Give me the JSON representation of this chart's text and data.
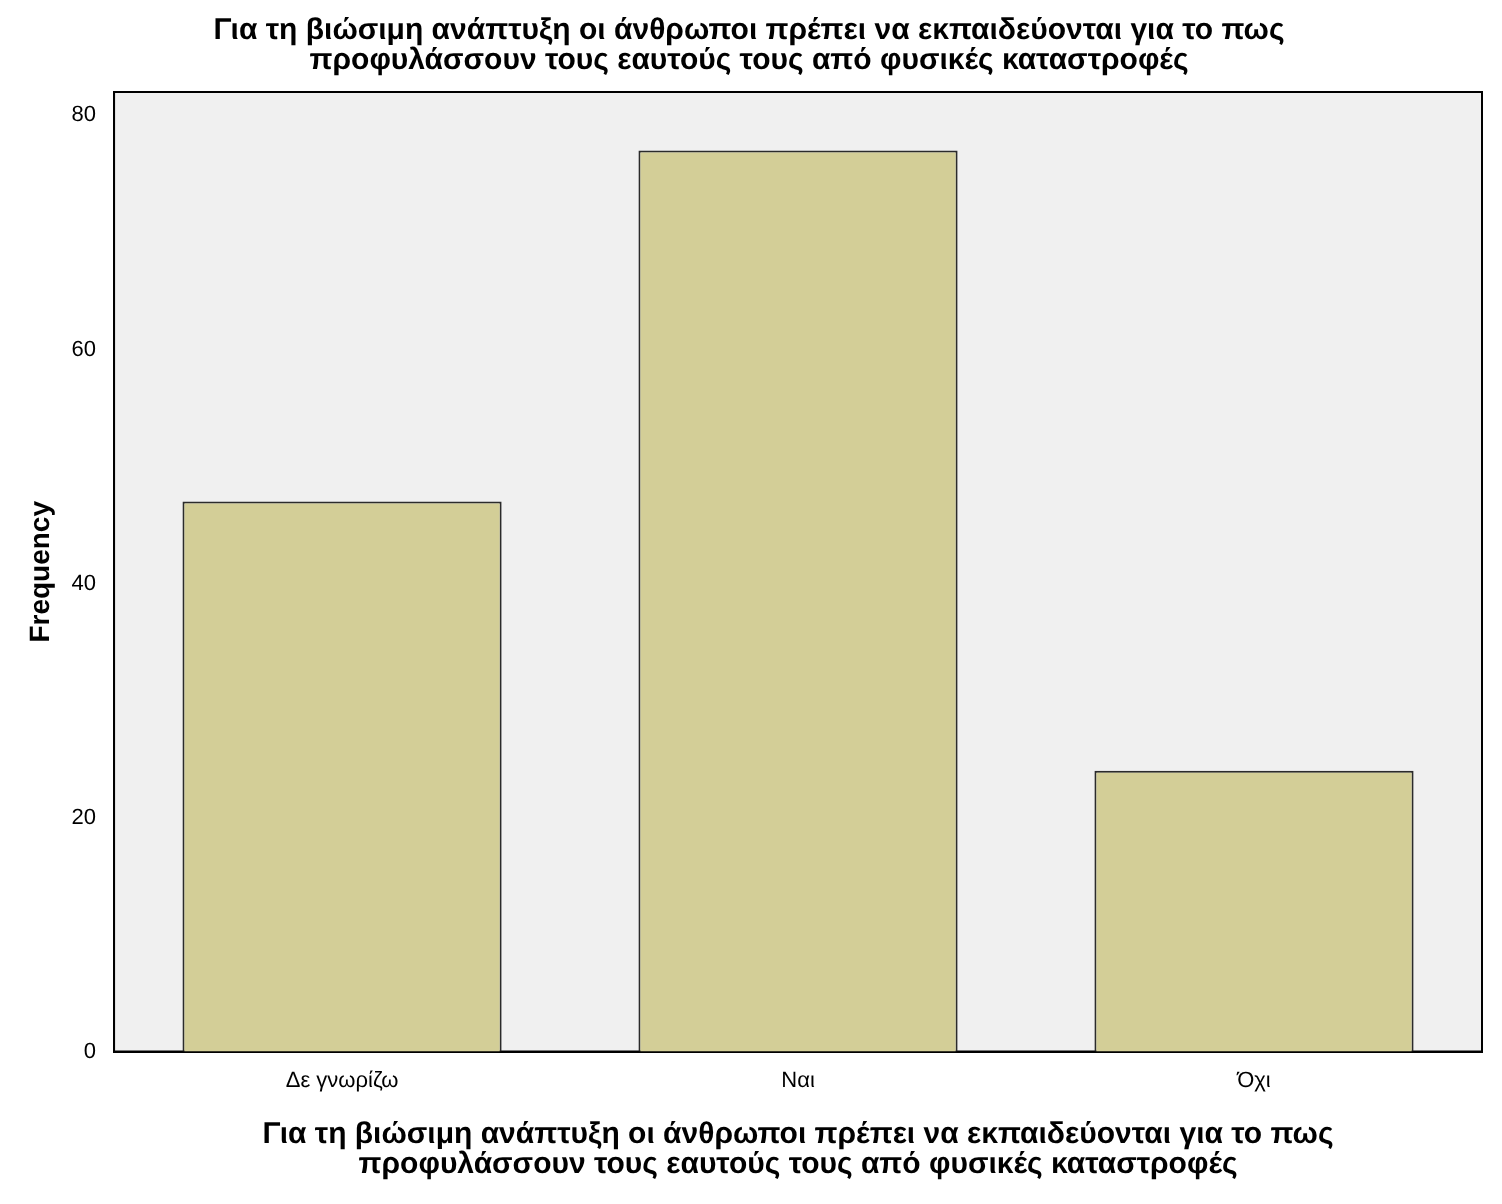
{
  "chart_data": {
    "type": "bar",
    "title": "Για τη βιώσιμη ανάπτυξη οι άνθρωποι πρέπει να εκπαιδεύονται για το πως\nπροφυλάσσουν τους εαυτούς τους από φυσικές καταστροφές",
    "xlabel": "Για τη βιώσιμη ανάπτυξη οι άνθρωποι πρέπει να εκπαιδεύονται για το πως\nπροφυλάσσουν τους εαυτούς τους από φυσικές καταστροφές",
    "ylabel": "Frequency",
    "categories": [
      "Δε γνωρίζω",
      "Ναι",
      "Όχι"
    ],
    "values": [
      47,
      77,
      24
    ],
    "color": "#d3ce97",
    "ylim": [
      0,
      82
    ],
    "yticks": [
      0,
      20,
      40,
      60,
      80
    ],
    "grid": false,
    "legend": false
  }
}
